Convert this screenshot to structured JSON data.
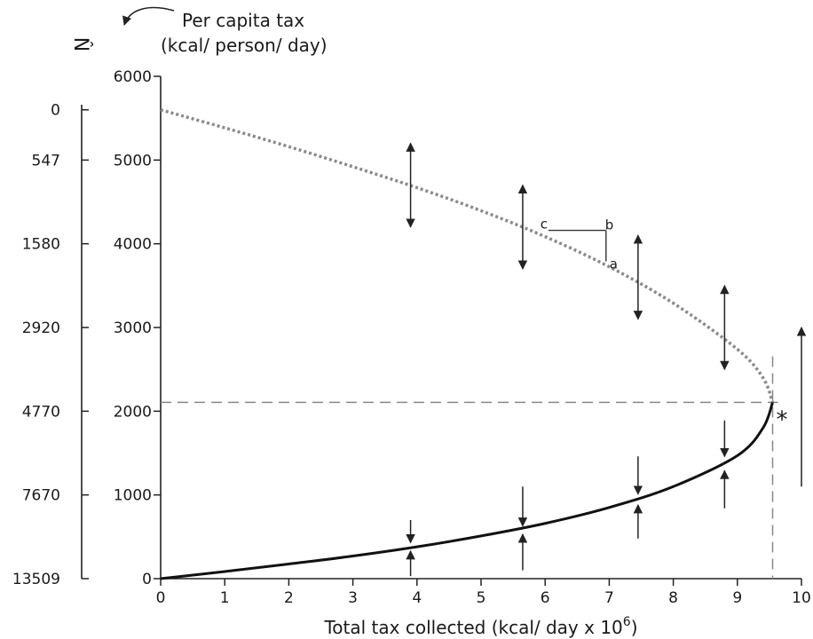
{
  "chart_data": {
    "type": "line",
    "title": "",
    "left_axis_title": "N̂",
    "ylabel": "Per capita tax",
    "ylabel_units": "(kcal/ person/ day)",
    "xlabel_text": "Total tax collected (kcal/ day x 10",
    "xlabel_sup": "6",
    "xlabel_end": ")",
    "xlim": [
      0,
      10
    ],
    "ylim": [
      0,
      6000
    ],
    "x_ticks": [
      "0",
      "1",
      "2",
      "3",
      "4",
      "5",
      "6",
      "7",
      "8",
      "9",
      "10"
    ],
    "y_ticks": [
      "0",
      "1000",
      "2000",
      "3000",
      "4000",
      "5000",
      "6000"
    ],
    "n_ticks": [
      {
        "label": "0",
        "y": 5600
      },
      {
        "label": "547",
        "y": 5000
      },
      {
        "label": "1580",
        "y": 4000
      },
      {
        "label": "2920",
        "y": 3000
      },
      {
        "label": "4770",
        "y": 2000
      },
      {
        "label": "7670",
        "y": 1000
      },
      {
        "label": "13509",
        "y": 0
      }
    ],
    "series": [
      {
        "style": "dotted-gray",
        "x": [
          0,
          1,
          2,
          3,
          4,
          5,
          6,
          7,
          8,
          9,
          9.4,
          9.55
        ],
        "y": [
          5600,
          5385,
          5160,
          4920,
          4670,
          4395,
          4085,
          3725,
          3290,
          2740,
          2400,
          2105
        ]
      },
      {
        "style": "solid-black",
        "x": [
          0,
          1,
          2,
          3,
          4,
          5,
          6,
          7,
          8,
          9,
          9.4,
          9.55
        ],
        "y": [
          0,
          85,
          175,
          270,
          380,
          510,
          660,
          850,
          1100,
          1470,
          1800,
          2105
        ]
      }
    ],
    "reference_lines": {
      "x": 9.55,
      "y": 2105
    },
    "annotations": {
      "star": "*",
      "a": "a",
      "b": "b",
      "c": "c",
      "b_point": {
        "x": 6.95,
        "y": 4160
      },
      "c_point": {
        "x": 6.05,
        "y": 4160
      },
      "a_point": {
        "x": 6.95,
        "y": 3790
      }
    },
    "dual_arrows": [
      {
        "x": 3.9,
        "y0": 4200,
        "y1": 5200
      },
      {
        "x": 5.65,
        "y0": 3700,
        "y1": 4700
      },
      {
        "x": 7.45,
        "y0": 3100,
        "y1": 4100
      },
      {
        "x": 8.8,
        "y0": 2500,
        "y1": 3500
      }
    ],
    "inward_arrows": [
      {
        "x": 3.9,
        "top_from": 700,
        "top_to": 430,
        "bot_from": 30,
        "bot_to": 330
      },
      {
        "x": 5.65,
        "top_from": 1100,
        "top_to": 630,
        "bot_from": 100,
        "bot_to": 530
      },
      {
        "x": 7.45,
        "top_from": 1460,
        "top_to": 1010,
        "bot_from": 480,
        "bot_to": 880
      },
      {
        "x": 8.8,
        "top_from": 1890,
        "top_to": 1460,
        "bot_from": 840,
        "bot_to": 1290
      }
    ],
    "side_arrow": {
      "x": 10,
      "y0": 1100,
      "y1": 3000
    },
    "grid": false,
    "legend": "none"
  }
}
